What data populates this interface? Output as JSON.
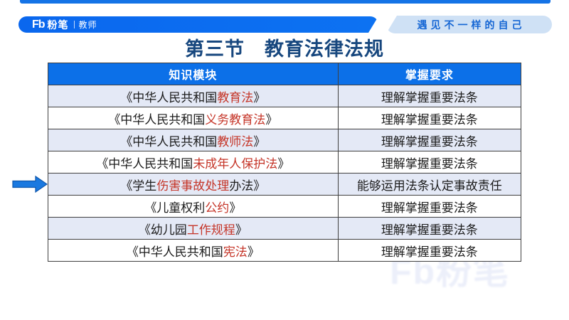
{
  "brand": {
    "logo_mark": "Fb",
    "logo_name": "粉笔",
    "logo_sub": "教师",
    "tagline": "遇见不一样的自己"
  },
  "title": "第三节　教育法律法规",
  "table": {
    "headers": [
      "知识模块",
      "掌握要求"
    ],
    "rows": [
      {
        "module": [
          {
            "text": "《中华人民共和国",
            "highlight": false
          },
          {
            "text": "教育法",
            "highlight": true
          },
          {
            "text": "》",
            "highlight": false
          }
        ],
        "requirement": "理解掌握重要法条"
      },
      {
        "module": [
          {
            "text": "《中华人民共和国",
            "highlight": false
          },
          {
            "text": "义务教育法",
            "highlight": true
          },
          {
            "text": "》",
            "highlight": false
          }
        ],
        "requirement": "理解掌握重要法条"
      },
      {
        "module": [
          {
            "text": "《中华人民共和国",
            "highlight": false
          },
          {
            "text": "教师法",
            "highlight": true
          },
          {
            "text": "》",
            "highlight": false
          }
        ],
        "requirement": "理解掌握重要法条"
      },
      {
        "module": [
          {
            "text": "《中华人民共和国",
            "highlight": false
          },
          {
            "text": "未成年人保护法",
            "highlight": true
          },
          {
            "text": "》",
            "highlight": false
          }
        ],
        "requirement": "理解掌握重要法条"
      },
      {
        "module": [
          {
            "text": "《学生",
            "highlight": false
          },
          {
            "text": "伤害事故处理",
            "highlight": true
          },
          {
            "text": "办法》",
            "highlight": false
          }
        ],
        "requirement": "能够运用法条认定事故责任"
      },
      {
        "module": [
          {
            "text": "《儿童权利",
            "highlight": false
          },
          {
            "text": "公约",
            "highlight": true
          },
          {
            "text": "》",
            "highlight": false
          }
        ],
        "requirement": "理解掌握重要法条"
      },
      {
        "module": [
          {
            "text": "《幼儿园",
            "highlight": false
          },
          {
            "text": "工作规程",
            "highlight": true
          },
          {
            "text": "》",
            "highlight": false
          }
        ],
        "requirement": "理解掌握重要法条"
      },
      {
        "module": [
          {
            "text": "《中华人民共和国",
            "highlight": false
          },
          {
            "text": "宪法",
            "highlight": true
          },
          {
            "text": "》",
            "highlight": false
          }
        ],
        "requirement": "理解掌握重要法条"
      }
    ]
  },
  "pointer": {
    "icon": "arrow-right-icon",
    "row_index": 4
  },
  "watermark": "Fb粉笔",
  "colors": {
    "primary_blue": "#0d6ff0",
    "table_header_blue": "#0c70e8",
    "title_navy": "#17477e",
    "highlight_red": "#c53528",
    "row_alt_blue": "#e4e9f6",
    "tagline_bg": "#cfe1f5",
    "tagline_text": "#1566d4"
  }
}
